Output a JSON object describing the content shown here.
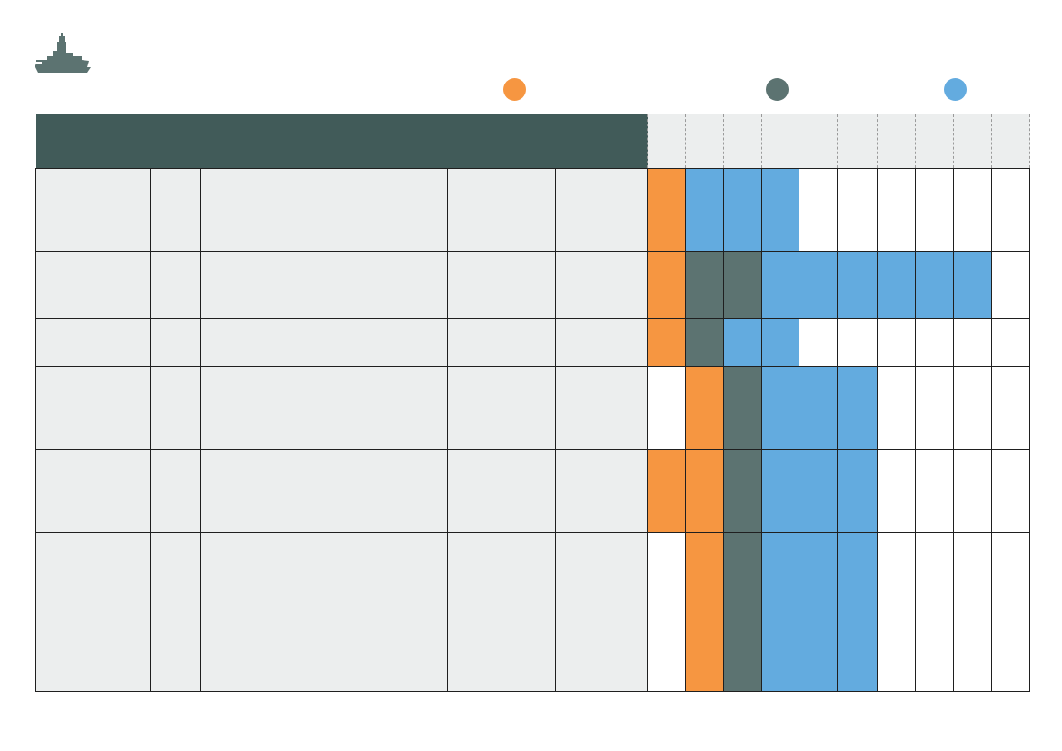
{
  "colors": {
    "header_band": "#415b59",
    "phase_orange": "#f69641",
    "phase_slate": "#5c7371",
    "phase_blue": "#63abdf",
    "info_fill": "#eceeee"
  },
  "icons": {
    "logo": "warship-icon"
  },
  "legend": [
    {
      "key": "orange",
      "color": "#f69641"
    },
    {
      "key": "slate",
      "color": "#5c7371"
    },
    {
      "key": "blue",
      "color": "#63abdf"
    }
  ],
  "timeline_columns": 10,
  "rows": [
    {
      "cells": [
        "",
        "",
        "",
        "",
        ""
      ],
      "bars": [
        "o",
        "b",
        "b",
        "b",
        "",
        "",
        "",
        "",
        "",
        ""
      ]
    },
    {
      "cells": [
        "",
        "",
        "",
        "",
        ""
      ],
      "bars": [
        "o",
        "g",
        "g",
        "b",
        "b",
        "b",
        "b",
        "b",
        "b",
        ""
      ]
    },
    {
      "cells": [
        "",
        "",
        "",
        "",
        ""
      ],
      "bars": [
        "o",
        "g",
        "b",
        "b",
        "",
        "",
        "",
        "",
        "",
        ""
      ]
    },
    {
      "cells": [
        "",
        "",
        "",
        "",
        ""
      ],
      "bars": [
        "",
        "o",
        "g",
        "b",
        "b",
        "b",
        "",
        "",
        "",
        ""
      ]
    },
    {
      "cells": [
        "",
        "",
        "",
        "",
        ""
      ],
      "bars": [
        "o",
        "o",
        "g",
        "b",
        "b",
        "b",
        "",
        "",
        "",
        ""
      ]
    },
    {
      "cells": [
        "",
        "",
        "",
        "",
        ""
      ],
      "bars": [
        "",
        "o",
        "g",
        "b",
        "b",
        "b",
        "",
        "",
        "",
        ""
      ]
    }
  ]
}
